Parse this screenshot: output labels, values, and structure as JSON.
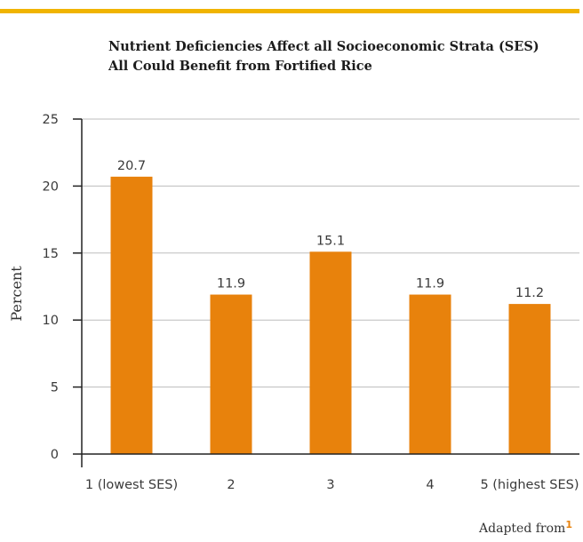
{
  "colors": {
    "accent": "#f0b400",
    "bar": "#e8820c",
    "footnote_ref": "#e8820c",
    "grid": "#bdbdbd",
    "axis": "#222222"
  },
  "chart_data": {
    "type": "bar",
    "title": "Nutrient Deficiencies Affect all Socioeconomic Strata (SES)",
    "subtitle": "All Could Benefit from Fortified Rice",
    "xlabel": "",
    "ylabel": "Percent",
    "categories": [
      "1 (lowest SES)",
      "2",
      "3",
      "4",
      "5 (highest SES)"
    ],
    "values": [
      20.7,
      11.9,
      15.1,
      11.9,
      11.2
    ],
    "value_labels": [
      "20.7",
      "11.9",
      "15.1",
      "11.9",
      "11.2"
    ],
    "ylim": [
      0,
      25
    ],
    "yticks": [
      0,
      5,
      10,
      15,
      20,
      25
    ],
    "grid": true,
    "legend": "none"
  },
  "footnote": {
    "text": "Adapted from",
    "ref": "1"
  }
}
